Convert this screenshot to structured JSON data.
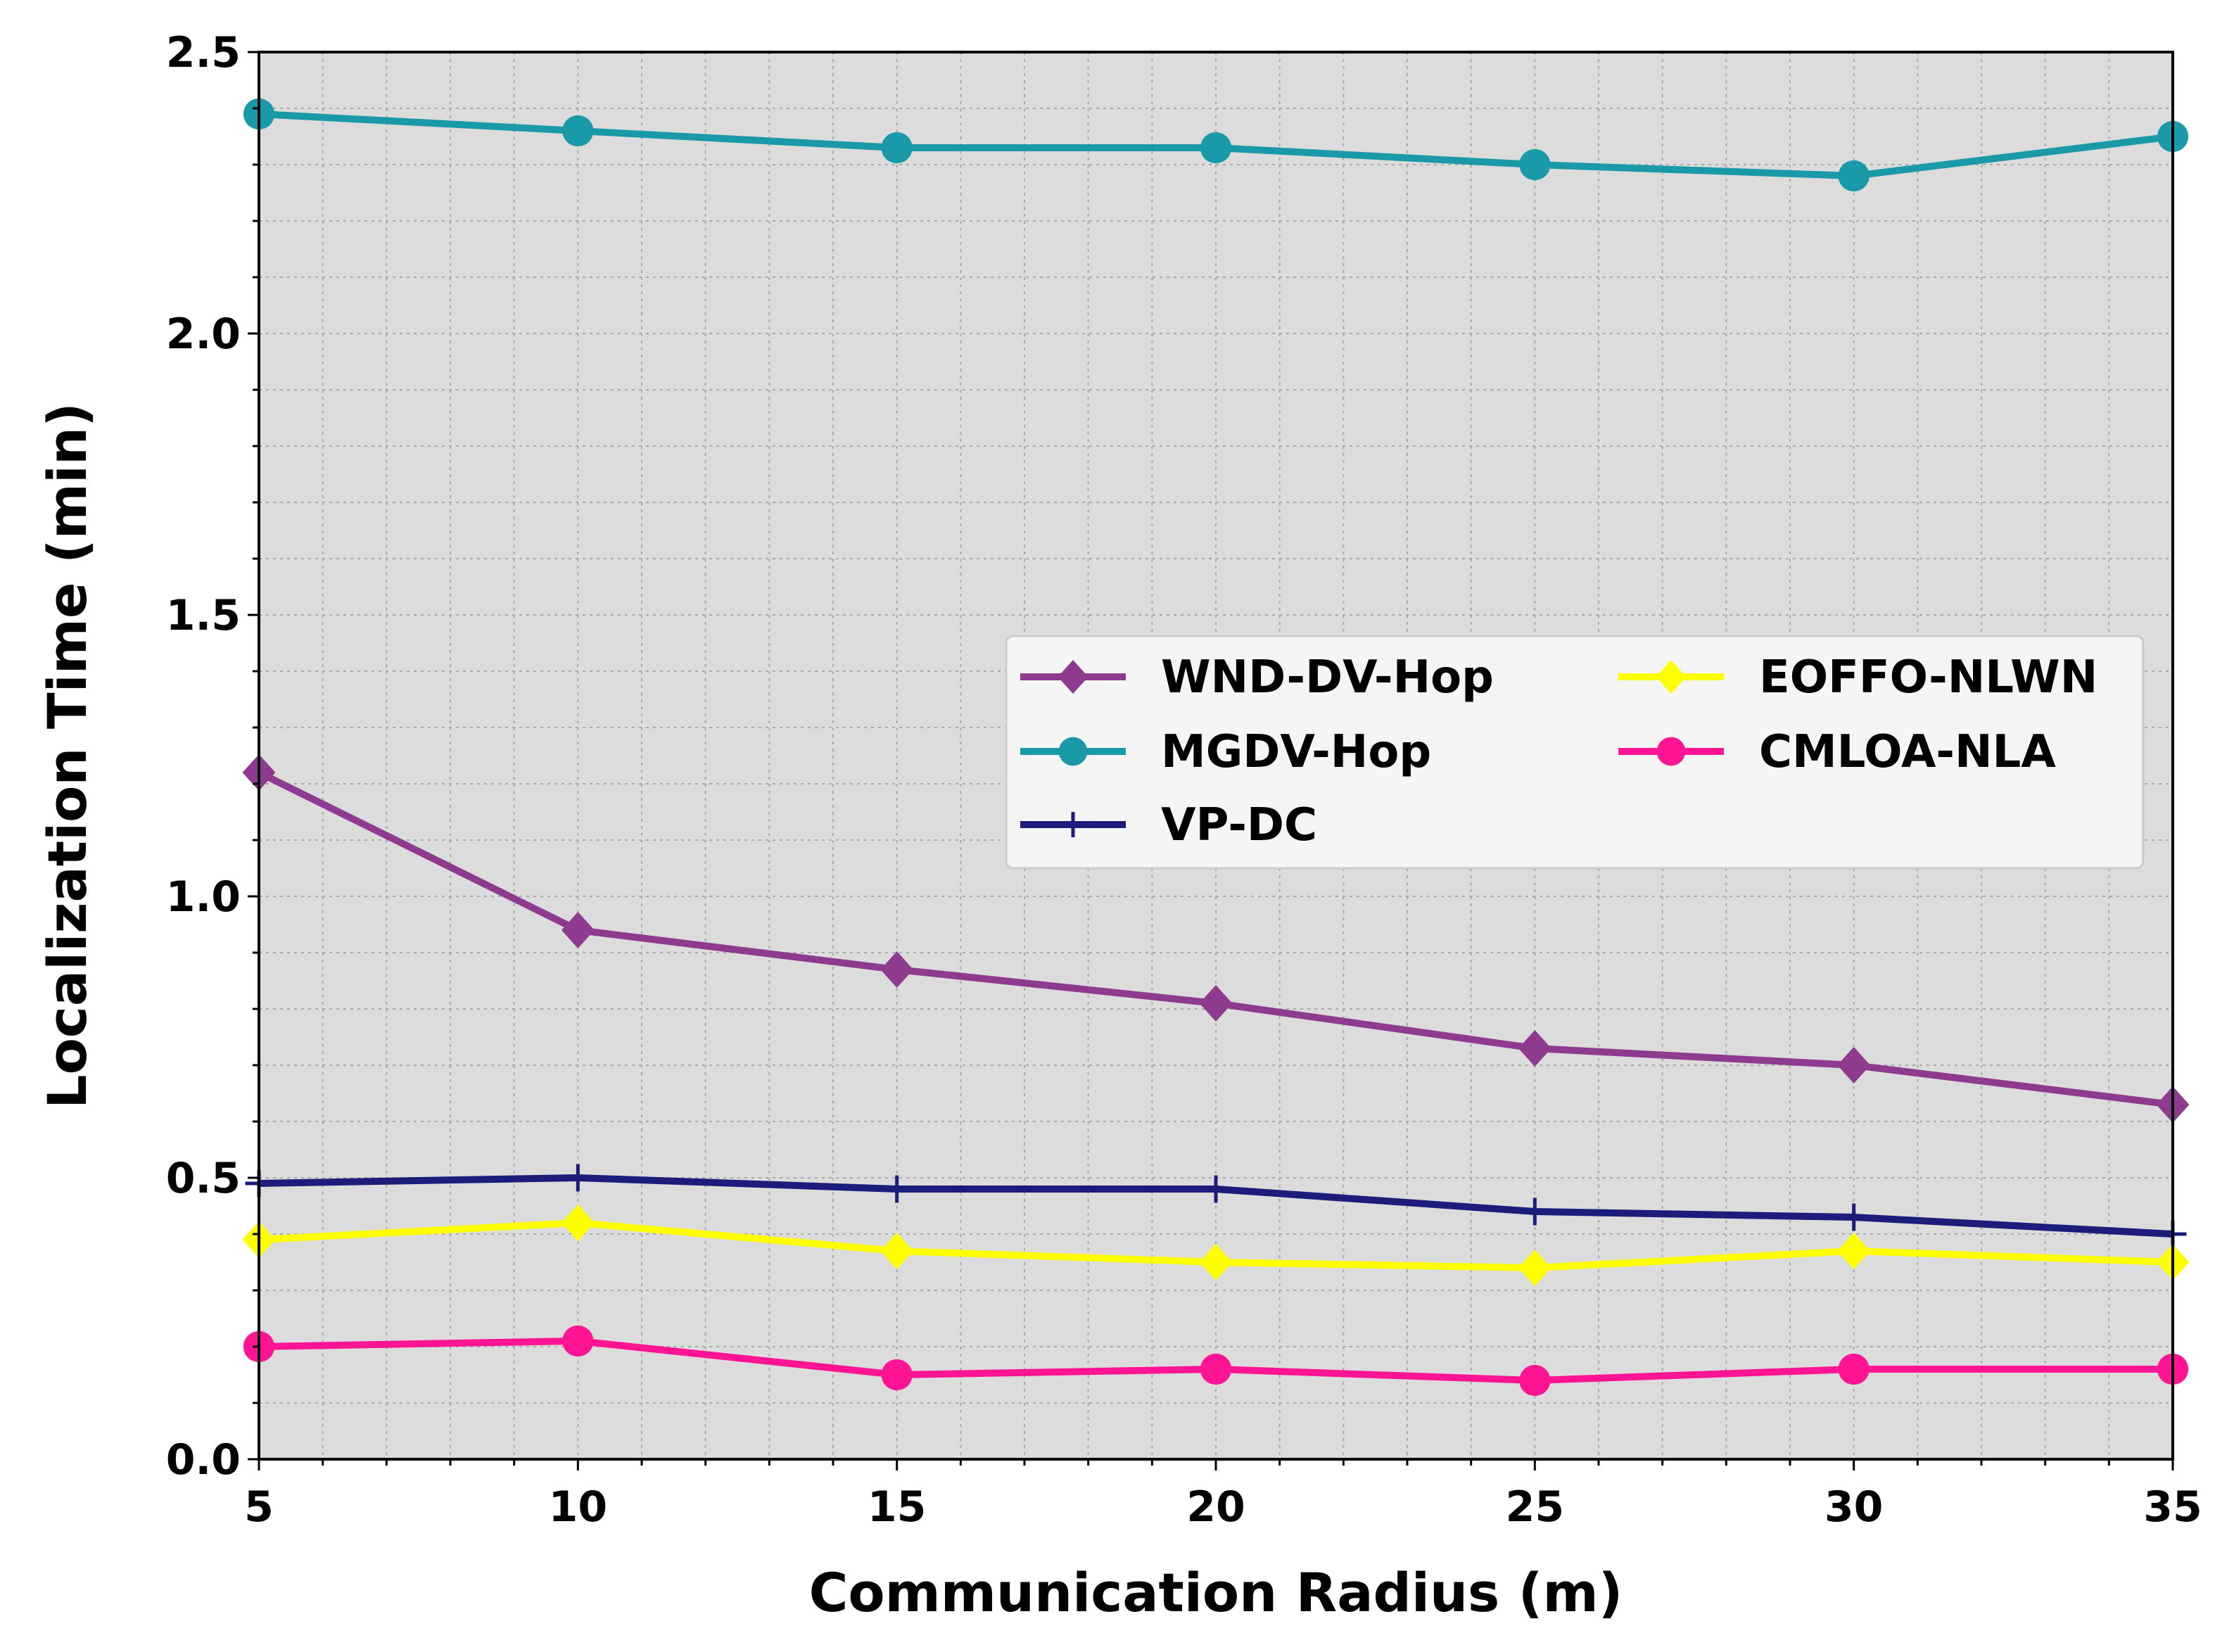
{
  "chart_data": {
    "type": "line",
    "title": "",
    "xlabel": "Communication Radius (m)",
    "ylabel": "Localization Time (min)",
    "xlim": [
      5,
      35
    ],
    "ylim": [
      0.0,
      2.5
    ],
    "xticks": [
      "5",
      "10",
      "15",
      "20",
      "25",
      "30",
      "35"
    ],
    "yticks": [
      "0.0",
      "0.5",
      "1.0",
      "1.5",
      "2.0",
      "2.5"
    ],
    "grid": true,
    "background": "#dcdcdc",
    "legend_position": "center-right",
    "x": [
      5,
      10,
      15,
      20,
      25,
      30,
      35
    ],
    "series": [
      {
        "name": "WND-DV-Hop",
        "color": "#8e3a8e",
        "marker": "diamond",
        "values": [
          1.22,
          0.94,
          0.87,
          0.81,
          0.73,
          0.7,
          0.63
        ]
      },
      {
        "name": "MGDV-Hop",
        "color": "#1a9aa8",
        "marker": "circle",
        "values": [
          2.39,
          2.36,
          2.33,
          2.33,
          2.3,
          2.28,
          2.35
        ]
      },
      {
        "name": "VP-DC",
        "color": "#1c1c7a",
        "marker": "plus",
        "values": [
          0.49,
          0.5,
          0.48,
          0.48,
          0.44,
          0.43,
          0.4
        ]
      },
      {
        "name": "EOFFO-NLWN",
        "color": "#ffff00",
        "marker": "diamond",
        "values": [
          0.39,
          0.42,
          0.37,
          0.35,
          0.34,
          0.37,
          0.35
        ]
      },
      {
        "name": "CMLOA-NLA",
        "color": "#ff1493",
        "marker": "circle",
        "values": [
          0.2,
          0.21,
          0.15,
          0.16,
          0.14,
          0.16,
          0.16
        ]
      }
    ]
  }
}
